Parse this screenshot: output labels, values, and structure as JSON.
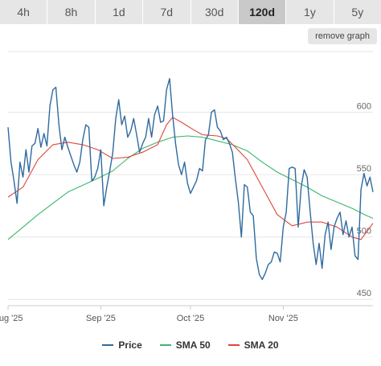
{
  "tabs": [
    {
      "label": "4h",
      "active": false
    },
    {
      "label": "8h",
      "active": false
    },
    {
      "label": "1d",
      "active": false
    },
    {
      "label": "7d",
      "active": false
    },
    {
      "label": "30d",
      "active": false
    },
    {
      "label": "120d",
      "active": true
    },
    {
      "label": "1y",
      "active": false
    },
    {
      "label": "5y",
      "active": false
    }
  ],
  "remove_graph_label": "remove graph",
  "colors": {
    "price": "#2f6aa0",
    "sma50": "#3cb66a",
    "sma20": "#e0453a"
  },
  "chart_data": {
    "type": "line",
    "title": "",
    "xlabel": "",
    "ylabel": "",
    "x_ticks": [
      {
        "label": "Aug '25",
        "day": 0
      },
      {
        "label": "Sep '25",
        "day": 31
      },
      {
        "label": "Oct '25",
        "day": 61
      },
      {
        "label": "Nov '25",
        "day": 92
      }
    ],
    "y_ticks": [
      450,
      500,
      550,
      600
    ],
    "xlim": [
      0,
      122
    ],
    "ylim": [
      445,
      650
    ],
    "grid": true,
    "legend_position": "bottom",
    "series": [
      {
        "name": "Price",
        "color_key": "price",
        "points": [
          [
            0,
            588
          ],
          [
            1,
            560
          ],
          [
            2,
            545
          ],
          [
            3,
            527
          ],
          [
            4,
            560
          ],
          [
            5,
            548
          ],
          [
            6,
            570
          ],
          [
            7,
            552
          ],
          [
            8,
            573
          ],
          [
            9,
            575
          ],
          [
            10,
            587
          ],
          [
            11,
            572
          ],
          [
            12,
            583
          ],
          [
            13,
            573
          ],
          [
            14,
            605
          ],
          [
            15,
            618
          ],
          [
            16,
            620
          ],
          [
            17,
            590
          ],
          [
            18,
            570
          ],
          [
            19,
            580
          ],
          [
            20,
            572
          ],
          [
            21,
            565
          ],
          [
            22,
            558
          ],
          [
            23,
            552
          ],
          [
            24,
            560
          ],
          [
            25,
            578
          ],
          [
            26,
            590
          ],
          [
            27,
            588
          ],
          [
            28,
            545
          ],
          [
            29,
            548
          ],
          [
            30,
            555
          ],
          [
            31,
            570
          ],
          [
            32,
            525
          ],
          [
            33,
            540
          ],
          [
            34,
            553
          ],
          [
            35,
            567
          ],
          [
            36,
            595
          ],
          [
            37,
            610
          ],
          [
            38,
            590
          ],
          [
            39,
            597
          ],
          [
            40,
            580
          ],
          [
            41,
            585
          ],
          [
            42,
            595
          ],
          [
            43,
            582
          ],
          [
            44,
            568
          ],
          [
            45,
            575
          ],
          [
            46,
            580
          ],
          [
            47,
            595
          ],
          [
            48,
            580
          ],
          [
            49,
            598
          ],
          [
            50,
            605
          ],
          [
            51,
            592
          ],
          [
            52,
            593
          ],
          [
            53,
            618
          ],
          [
            54,
            627
          ],
          [
            55,
            598
          ],
          [
            56,
            575
          ],
          [
            57,
            558
          ],
          [
            58,
            550
          ],
          [
            59,
            560
          ],
          [
            60,
            543
          ],
          [
            61,
            535
          ],
          [
            62,
            540
          ],
          [
            63,
            545
          ],
          [
            64,
            555
          ],
          [
            65,
            553
          ],
          [
            66,
            578
          ],
          [
            67,
            582
          ],
          [
            68,
            600
          ],
          [
            69,
            602
          ],
          [
            70,
            588
          ],
          [
            71,
            585
          ],
          [
            72,
            578
          ],
          [
            73,
            580
          ],
          [
            74,
            575
          ],
          [
            75,
            568
          ],
          [
            76,
            547
          ],
          [
            77,
            528
          ],
          [
            78,
            500
          ],
          [
            79,
            542
          ],
          [
            80,
            540
          ],
          [
            81,
            520
          ],
          [
            82,
            517
          ],
          [
            83,
            483
          ],
          [
            84,
            470
          ],
          [
            85,
            466
          ],
          [
            86,
            471
          ],
          [
            87,
            478
          ],
          [
            88,
            480
          ],
          [
            89,
            488
          ],
          [
            90,
            487
          ],
          [
            91,
            480
          ],
          [
            92,
            508
          ],
          [
            93,
            520
          ],
          [
            94,
            555
          ],
          [
            95,
            556
          ],
          [
            96,
            555
          ],
          [
            97,
            508
          ],
          [
            98,
            540
          ],
          [
            99,
            554
          ],
          [
            100,
            548
          ],
          [
            101,
            520
          ],
          [
            102,
            495
          ],
          [
            103,
            478
          ],
          [
            104,
            495
          ],
          [
            105,
            475
          ],
          [
            106,
            502
          ],
          [
            107,
            512
          ],
          [
            108,
            490
          ],
          [
            109,
            508
          ],
          [
            110,
            515
          ],
          [
            111,
            520
          ],
          [
            112,
            502
          ],
          [
            113,
            513
          ],
          [
            114,
            500
          ],
          [
            115,
            508
          ],
          [
            116,
            485
          ],
          [
            117,
            482
          ],
          [
            118,
            538
          ],
          [
            119,
            551
          ],
          [
            120,
            541
          ],
          [
            121,
            548
          ],
          [
            122,
            536
          ]
        ]
      },
      {
        "name": "SMA 50",
        "color_key": "sma50",
        "points": [
          [
            0,
            498
          ],
          [
            10,
            518
          ],
          [
            20,
            536
          ],
          [
            30,
            547
          ],
          [
            35,
            553
          ],
          [
            40,
            563
          ],
          [
            45,
            571
          ],
          [
            50,
            576
          ],
          [
            55,
            580
          ],
          [
            60,
            581
          ],
          [
            65,
            580
          ],
          [
            70,
            577
          ],
          [
            75,
            574
          ],
          [
            80,
            569
          ],
          [
            85,
            560
          ],
          [
            90,
            552
          ],
          [
            95,
            546
          ],
          [
            100,
            540
          ],
          [
            105,
            533
          ],
          [
            110,
            528
          ],
          [
            115,
            523
          ],
          [
            120,
            517
          ],
          [
            122,
            515
          ]
        ]
      },
      {
        "name": "SMA 20",
        "color_key": "sma20",
        "points": [
          [
            0,
            532
          ],
          [
            5,
            540
          ],
          [
            10,
            562
          ],
          [
            15,
            574
          ],
          [
            20,
            576
          ],
          [
            25,
            574
          ],
          [
            30,
            570
          ],
          [
            35,
            563
          ],
          [
            40,
            564
          ],
          [
            45,
            568
          ],
          [
            50,
            574
          ],
          [
            53,
            590
          ],
          [
            55,
            596
          ],
          [
            58,
            592
          ],
          [
            62,
            586
          ],
          [
            65,
            582
          ],
          [
            70,
            581
          ],
          [
            73,
            579
          ],
          [
            76,
            572
          ],
          [
            80,
            562
          ],
          [
            85,
            540
          ],
          [
            90,
            518
          ],
          [
            95,
            509
          ],
          [
            100,
            512
          ],
          [
            105,
            512
          ],
          [
            110,
            508
          ],
          [
            115,
            500
          ],
          [
            118,
            498
          ],
          [
            122,
            511
          ]
        ]
      }
    ]
  }
}
